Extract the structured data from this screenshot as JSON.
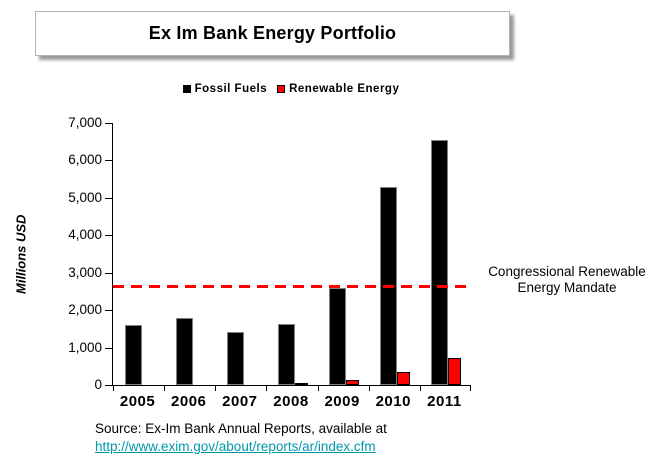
{
  "title": "Ex Im Bank Energy Portfolio",
  "legend": {
    "fossil": "Fossil Fuels",
    "renewable": "Renewable Energy"
  },
  "y_axis_title": "Millions USD",
  "annotation": {
    "line1": "Congressional Renewable",
    "line2": "Energy Mandate"
  },
  "source": {
    "text": "Source: Ex-Im Bank Annual Reports, available at",
    "link_text": "http://www.exim.gov/about/reports/ar/index.cfm"
  },
  "colors": {
    "fossil_bar": "#000000",
    "fossil_bar_outline": "#808080",
    "renewable_bar": "#FF0000",
    "renewable_bar_outline": "#000000",
    "mandate_line": "#FF0000",
    "link": "#0099AA",
    "title_box_shadow": "#999999"
  },
  "chart_data": {
    "type": "bar",
    "title": "Ex Im Bank Energy Portfolio",
    "categories": [
      "2005",
      "2006",
      "2007",
      "2008",
      "2009",
      "2010",
      "2011"
    ],
    "series": [
      {
        "name": "Fossil Fuels",
        "color": "#000000",
        "values": [
          1600,
          1780,
          1420,
          1620,
          2600,
          5300,
          6550
        ]
      },
      {
        "name": "Renewable Energy",
        "color": "#FF0000",
        "values": [
          0,
          0,
          0,
          25,
          130,
          355,
          710
        ]
      }
    ],
    "xlabel": "",
    "ylabel": "Millions USD",
    "ylim": [
      0,
      7000
    ],
    "ytick_step": 1000,
    "grid": false,
    "legend_position": "top-center",
    "reference_line": {
      "value": 2650,
      "label": "Congressional Renewable Energy Mandate",
      "style": "dashed",
      "color": "#FF0000"
    }
  }
}
